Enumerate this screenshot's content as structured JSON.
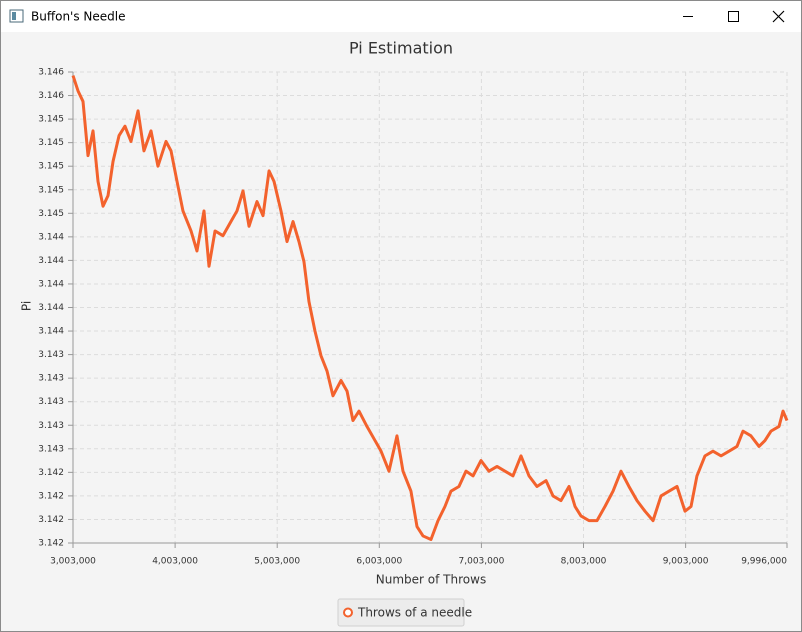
{
  "window": {
    "title": "Buffon's Needle"
  },
  "chart_data": {
    "type": "line",
    "title": "Pi Estimation",
    "x_label": "Number of Throws",
    "y_label": "Pi",
    "xlim": [
      3003000,
      9996000
    ],
    "xticks": [
      {
        "value": 3003000,
        "label": "3,003,000"
      },
      {
        "value": 4003000,
        "label": "4,003,000"
      },
      {
        "value": 5003000,
        "label": "5,003,000"
      },
      {
        "value": 6003000,
        "label": "6,003,000"
      },
      {
        "value": 7003000,
        "label": "7,003,000"
      },
      {
        "value": 8003000,
        "label": "8,003,000"
      },
      {
        "value": 9003000,
        "label": "9,003,000"
      },
      {
        "value": 9996000,
        "label": "9,996,000"
      }
    ],
    "ylim": [
      3.1418,
      3.1458
    ],
    "yticks": [
      {
        "value": 3.1418,
        "label": "3.142"
      },
      {
        "value": 3.142,
        "label": "3.142"
      },
      {
        "value": 3.1422,
        "label": "3.142"
      },
      {
        "value": 3.1424,
        "label": "3.142"
      },
      {
        "value": 3.1426,
        "label": "3.143"
      },
      {
        "value": 3.1428,
        "label": "3.143"
      },
      {
        "value": 3.143,
        "label": "3.143"
      },
      {
        "value": 3.1432,
        "label": "3.143"
      },
      {
        "value": 3.1434,
        "label": "3.143"
      },
      {
        "value": 3.1436,
        "label": "3.144"
      },
      {
        "value": 3.1438,
        "label": "3.144"
      },
      {
        "value": 3.144,
        "label": "3.144"
      },
      {
        "value": 3.1442,
        "label": "3.144"
      },
      {
        "value": 3.1444,
        "label": "3.144"
      },
      {
        "value": 3.1446,
        "label": "3.145"
      },
      {
        "value": 3.1448,
        "label": "3.145"
      },
      {
        "value": 3.145,
        "label": "3.145"
      },
      {
        "value": 3.1452,
        "label": "3.145"
      },
      {
        "value": 3.1454,
        "label": "3.145"
      },
      {
        "value": 3.1456,
        "label": "3.146"
      },
      {
        "value": 3.1458,
        "label": "3.146"
      }
    ],
    "grid": true,
    "legend": "bottom",
    "x": [
      3003000,
      3052000,
      3101000,
      3150000,
      3199000,
      3248000,
      3297000,
      3346000,
      3395000,
      3454000,
      3512000,
      3571000,
      3640000,
      3698000,
      3767000,
      3835000,
      3914000,
      3963000,
      4022000,
      4080000,
      4159000,
      4217000,
      4286000,
      4335000,
      4394000,
      4472000,
      4550000,
      4609000,
      4668000,
      4727000,
      4805000,
      4864000,
      4923000,
      4972000,
      5040000,
      5099000,
      5158000,
      5216000,
      5265000,
      5314000,
      5373000,
      5432000,
      5491000,
      5549000,
      5628000,
      5687000,
      5745000,
      5804000,
      5882000,
      5961000,
      6020000,
      6098000,
      6176000,
      6235000,
      6313000,
      6372000,
      6431000,
      6509000,
      6578000,
      6646000,
      6705000,
      6783000,
      6852000,
      6921000,
      6999000,
      7077000,
      7156000,
      7234000,
      7312000,
      7391000,
      7469000,
      7547000,
      7636000,
      7704000,
      7782000,
      7861000,
      7920000,
      7978000,
      8057000,
      8135000,
      8213000,
      8292000,
      8370000,
      8448000,
      8527000,
      8605000,
      8684000,
      8762000,
      8840000,
      8919000,
      8997000,
      9056000,
      9114000,
      9193000,
      9271000,
      9350000,
      9428000,
      9506000,
      9565000,
      9643000,
      9722000,
      9780000,
      9839000,
      9918000,
      9957000,
      9996000
    ],
    "series": [
      {
        "name": "Throws of a needle",
        "color": "#f3622d",
        "values": [
          3.14577,
          3.14564,
          3.14555,
          3.14509,
          3.1453,
          3.14487,
          3.14466,
          3.14475,
          3.14504,
          3.14526,
          3.14534,
          3.14521,
          3.14547,
          3.14513,
          3.1453,
          3.145,
          3.14521,
          3.14513,
          3.14487,
          3.14462,
          3.14445,
          3.14428,
          3.14462,
          3.14415,
          3.14445,
          3.14441,
          3.14453,
          3.14462,
          3.14479,
          3.14449,
          3.1447,
          3.14458,
          3.14496,
          3.14487,
          3.14462,
          3.14436,
          3.14453,
          3.14436,
          3.14419,
          3.14385,
          3.1436,
          3.14339,
          3.14326,
          3.14305,
          3.14318,
          3.14309,
          3.14284,
          3.14292,
          3.14279,
          3.14267,
          3.14258,
          3.14241,
          3.14271,
          3.14241,
          3.14224,
          3.14194,
          3.14186,
          3.14183,
          3.14199,
          3.14211,
          3.14224,
          3.14228,
          3.14241,
          3.14237,
          3.1425,
          3.14241,
          3.14245,
          3.14241,
          3.14237,
          3.14254,
          3.14237,
          3.14228,
          3.14233,
          3.1422,
          3.14216,
          3.14228,
          3.14211,
          3.14203,
          3.14199,
          3.14199,
          3.14211,
          3.14224,
          3.14241,
          3.14228,
          3.14216,
          3.14207,
          3.14199,
          3.1422,
          3.14224,
          3.14228,
          3.14207,
          3.14211,
          3.14237,
          3.14254,
          3.14258,
          3.14254,
          3.14258,
          3.14262,
          3.14275,
          3.14271,
          3.14262,
          3.14267,
          3.14275,
          3.14279,
          3.14292,
          3.14284
        ]
      }
    ]
  }
}
